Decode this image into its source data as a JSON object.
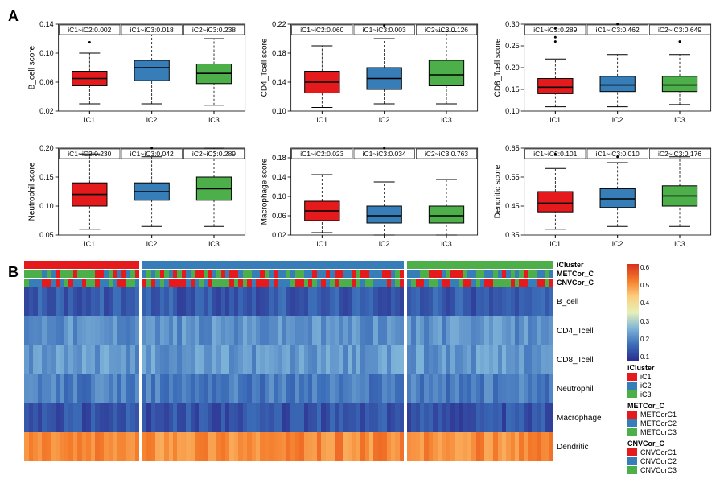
{
  "colors": {
    "iC1": "#e41a1c",
    "iC2": "#377eb8",
    "iC3": "#4daf4a",
    "black": "#000000",
    "box_border": "#000000",
    "background": "#ffffff"
  },
  "panelA": {
    "label": "A",
    "x_categories": [
      "iC1",
      "iC2",
      "iC3"
    ],
    "plots": [
      {
        "ylabel": "B_cell score",
        "ylim": [
          0.02,
          0.14
        ],
        "yticks": [
          0.02,
          0.06,
          0.1,
          0.14
        ],
        "pvals": [
          "iC1~iC2:0.002",
          "iC1~iC3:0.018",
          "iC2~iC3:0.238"
        ],
        "boxes": [
          {
            "q1": 0.055,
            "med": 0.065,
            "q3": 0.075,
            "wlo": 0.03,
            "whi": 0.1,
            "out": [
              0.115
            ],
            "col": "#e41a1c"
          },
          {
            "q1": 0.062,
            "med": 0.08,
            "q3": 0.09,
            "wlo": 0.03,
            "whi": 0.125,
            "out": [],
            "col": "#377eb8"
          },
          {
            "q1": 0.058,
            "med": 0.072,
            "q3": 0.085,
            "wlo": 0.028,
            "whi": 0.12,
            "out": [],
            "col": "#4daf4a"
          }
        ]
      },
      {
        "ylabel": "CD4_Tcell score",
        "ylim": [
          0.1,
          0.22
        ],
        "yticks": [
          0.1,
          0.14,
          0.18,
          0.22
        ],
        "pvals": [
          "iC1~iC2:0.060",
          "iC1~iC3:0.003",
          "iC2~iC3:0.126"
        ],
        "boxes": [
          {
            "q1": 0.125,
            "med": 0.14,
            "q3": 0.155,
            "wlo": 0.105,
            "whi": 0.19,
            "out": [],
            "col": "#e41a1c"
          },
          {
            "q1": 0.13,
            "med": 0.145,
            "q3": 0.16,
            "wlo": 0.11,
            "whi": 0.2,
            "out": [
              0.218
            ],
            "col": "#377eb8"
          },
          {
            "q1": 0.135,
            "med": 0.15,
            "q3": 0.17,
            "wlo": 0.11,
            "whi": 0.21,
            "out": [],
            "col": "#4daf4a"
          }
        ]
      },
      {
        "ylabel": "CD8_Tcell score",
        "ylim": [
          0.1,
          0.3
        ],
        "yticks": [
          0.1,
          0.15,
          0.2,
          0.25,
          0.3
        ],
        "pvals": [
          "iC1~iC2:0.289",
          "iC1~iC3:0.462",
          "iC2~iC3:0.649"
        ],
        "boxes": [
          {
            "q1": 0.14,
            "med": 0.155,
            "q3": 0.175,
            "wlo": 0.11,
            "whi": 0.22,
            "out": [
              0.26,
              0.27,
              0.29
            ],
            "col": "#e41a1c"
          },
          {
            "q1": 0.145,
            "med": 0.16,
            "q3": 0.18,
            "wlo": 0.11,
            "whi": 0.23,
            "out": [
              0.3
            ],
            "col": "#377eb8"
          },
          {
            "q1": 0.145,
            "med": 0.16,
            "q3": 0.18,
            "wlo": 0.115,
            "whi": 0.23,
            "out": [
              0.26
            ],
            "col": "#4daf4a"
          }
        ]
      },
      {
        "ylabel": "Neutrophil score",
        "ylim": [
          0.05,
          0.2
        ],
        "yticks": [
          0.05,
          0.1,
          0.15,
          0.2
        ],
        "pvals": [
          "iC1~iC2:0.230",
          "iC1~iC3:0.042",
          "iC2~iC3:0.289"
        ],
        "boxes": [
          {
            "q1": 0.1,
            "med": 0.12,
            "q3": 0.14,
            "wlo": 0.06,
            "whi": 0.19,
            "out": [],
            "col": "#e41a1c"
          },
          {
            "q1": 0.11,
            "med": 0.125,
            "q3": 0.14,
            "wlo": 0.065,
            "whi": 0.185,
            "out": [
              0.2
            ],
            "col": "#377eb8"
          },
          {
            "q1": 0.11,
            "med": 0.13,
            "q3": 0.15,
            "wlo": 0.065,
            "whi": 0.2,
            "out": [],
            "col": "#4daf4a"
          }
        ]
      },
      {
        "ylabel": "Macrophage score",
        "ylim": [
          0.02,
          0.2
        ],
        "yticks": [
          0.02,
          0.06,
          0.1,
          0.14,
          0.18
        ],
        "pvals": [
          "iC1~iC2:0.023",
          "iC1~iC3:0.034",
          "iC2~iC3:0.763"
        ],
        "boxes": [
          {
            "q1": 0.05,
            "med": 0.07,
            "q3": 0.09,
            "wlo": 0.025,
            "whi": 0.145,
            "out": [],
            "col": "#e41a1c"
          },
          {
            "q1": 0.045,
            "med": 0.06,
            "q3": 0.08,
            "wlo": 0.02,
            "whi": 0.13,
            "out": [
              0.2
            ],
            "col": "#377eb8"
          },
          {
            "q1": 0.045,
            "med": 0.06,
            "q3": 0.08,
            "wlo": 0.02,
            "whi": 0.135,
            "out": [],
            "col": "#4daf4a"
          }
        ]
      },
      {
        "ylabel": "Dendritic score",
        "ylim": [
          0.35,
          0.65
        ],
        "yticks": [
          0.35,
          0.45,
          0.55,
          0.65
        ],
        "pvals": [
          "iC1~iC2:0.101",
          "iC1~iC3:0.010",
          "iC2~iC3:0.176"
        ],
        "boxes": [
          {
            "q1": 0.43,
            "med": 0.46,
            "q3": 0.5,
            "wlo": 0.37,
            "whi": 0.58,
            "out": [
              0.63
            ],
            "col": "#e41a1c"
          },
          {
            "q1": 0.445,
            "med": 0.475,
            "q3": 0.51,
            "wlo": 0.38,
            "whi": 0.6,
            "out": [
              0.62
            ],
            "col": "#377eb8"
          },
          {
            "q1": 0.45,
            "med": 0.485,
            "q3": 0.52,
            "wlo": 0.38,
            "whi": 0.62,
            "out": [],
            "col": "#4daf4a"
          }
        ]
      }
    ]
  },
  "panelB": {
    "label": "B",
    "cluster_widths": [
      0.22,
      0.5,
      0.28
    ],
    "annotations": [
      {
        "name": "iCluster",
        "type": "block",
        "col_per_seg": [
          "#e41a1c",
          "#377eb8",
          "#4daf4a"
        ]
      },
      {
        "name": "METCor_C",
        "type": "random3",
        "palette": [
          "#e41a1c",
          "#377eb8",
          "#4daf4a"
        ]
      },
      {
        "name": "CNVCor_C",
        "type": "random3",
        "palette": [
          "#e41a1c",
          "#377eb8",
          "#4daf4a"
        ]
      }
    ],
    "rows": [
      "B_cell",
      "CD4_Tcell",
      "CD8_Tcell",
      "Neutrophil",
      "Macrophage",
      "Dendritic"
    ],
    "row_means": [
      0.07,
      0.15,
      0.16,
      0.12,
      0.06,
      0.48
    ],
    "colorscale": {
      "min": 0.0,
      "max": 0.6,
      "stops": [
        {
          "v": 0.0,
          "c": "#2c2d8f"
        },
        {
          "v": 0.1,
          "c": "#3b6db8"
        },
        {
          "v": 0.2,
          "c": "#7fb4d9"
        },
        {
          "v": 0.3,
          "c": "#e6f0b8"
        },
        {
          "v": 0.4,
          "c": "#fdcd7b"
        },
        {
          "v": 0.5,
          "c": "#f47b2a"
        },
        {
          "v": 0.6,
          "c": "#d7301f"
        }
      ],
      "ticks": [
        0.6,
        0.5,
        0.4,
        0.3,
        0.2,
        0.1
      ]
    },
    "legends": [
      {
        "title": "iCluster",
        "items": [
          [
            "iC1",
            "#e41a1c"
          ],
          [
            "iC2",
            "#377eb8"
          ],
          [
            "iC3",
            "#4daf4a"
          ]
        ]
      },
      {
        "title": "METCor_C",
        "items": [
          [
            "METCorC1",
            "#e41a1c"
          ],
          [
            "METCorC2",
            "#377eb8"
          ],
          [
            "METCorC3",
            "#4daf4a"
          ]
        ]
      },
      {
        "title": "CNVCor_C",
        "items": [
          [
            "CNVCorC1",
            "#e41a1c"
          ],
          [
            "CNVCorC2",
            "#377eb8"
          ],
          [
            "CNVCorC3",
            "#4daf4a"
          ]
        ]
      }
    ]
  }
}
